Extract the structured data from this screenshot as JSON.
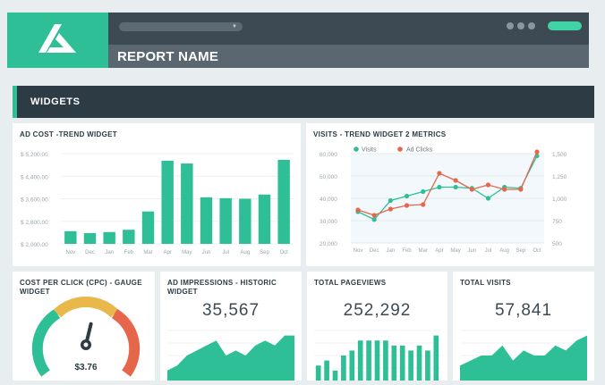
{
  "app": {
    "report_title": "REPORT NAME",
    "section_title": "WIDGETS"
  },
  "colors": {
    "green": "#2fbf96",
    "red": "#e5664b",
    "dark": "#2c3b44",
    "yellow": "#e8b84b"
  },
  "widgets": {
    "ad_cost": {
      "title": "AD COST -TREND WIDGET",
      "chart_data": {
        "type": "bar",
        "categories": [
          "Nov",
          "Dec",
          "Jan",
          "Feb",
          "Mar",
          "Apr",
          "May",
          "Jun",
          "Jul",
          "Aug",
          "Sep",
          "Oct"
        ],
        "values": [
          2450,
          2380,
          2420,
          2500,
          3150,
          4950,
          4850,
          3650,
          3620,
          3600,
          3750,
          4980
        ],
        "ylim": [
          2000,
          5200
        ],
        "ticks": [
          "$ 2,000.00",
          "$ 2,800.00",
          "$ 3,600.00",
          "$ 4,400.00",
          "$ 5,200.00"
        ],
        "tick_values": [
          2000,
          2800,
          3600,
          4400,
          5200
        ]
      }
    },
    "visits": {
      "title": "VISITS - TREND WIDGET 2 METRICS",
      "legend": [
        "Visits",
        "Ad Clicks"
      ],
      "chart_data": {
        "type": "line",
        "categories": [
          "Nov",
          "Dec",
          "Jan",
          "Feb",
          "Mar",
          "Apr",
          "May",
          "Jun",
          "Jul",
          "Aug",
          "Sep",
          "Oct"
        ],
        "series": [
          {
            "name": "Visits",
            "axis": "left",
            "values": [
              34000,
              30500,
              39000,
              41000,
              43000,
              45000,
              45000,
              44500,
              40000,
              45000,
              44500,
              59000
            ]
          },
          {
            "name": "Ad Clicks",
            "axis": "right",
            "values": [
              870,
              810,
              880,
              920,
              930,
              1280,
              1200,
              1100,
              1150,
              1100,
              1100,
              1520
            ]
          }
        ],
        "left_ylim": [
          20000,
          60000
        ],
        "left_ticks": [
          "20,000",
          "30,000",
          "40,000",
          "50,000",
          "60,000"
        ],
        "right_ylim": [
          500,
          1500
        ],
        "right_ticks": [
          "500",
          "750",
          "1,000",
          "1,250",
          "1,500"
        ]
      }
    },
    "cpc": {
      "title_line1": "COST PER CLICK (CPC) - GAUGE",
      "title_line2": "WIDGET",
      "value_label": "$3.76",
      "value": 3.76,
      "needle_fraction": 0.55
    },
    "impressions": {
      "title_line1": "AD IMPRESSIONS - HISTORIC",
      "title_line2": "WIDGET",
      "value": "35,567",
      "chart_data": {
        "type": "area",
        "values": [
          2,
          3,
          5,
          6,
          7,
          8,
          5,
          6,
          5,
          7,
          8,
          7,
          9,
          9
        ]
      }
    },
    "pageviews": {
      "title": "TOTAL PAGEVIEWS",
      "value": "252,292",
      "chart_data": {
        "type": "bar",
        "values": [
          3,
          4,
          2,
          5,
          6,
          8,
          8,
          8,
          8,
          7,
          7,
          6,
          7,
          6,
          9
        ]
      }
    },
    "total_visits": {
      "title": "TOTAL VISITS",
      "value": "57,841",
      "chart_data": {
        "type": "area",
        "values": [
          3,
          4,
          5,
          5,
          7,
          4,
          6,
          5,
          5,
          7,
          6,
          8,
          9
        ]
      }
    }
  }
}
